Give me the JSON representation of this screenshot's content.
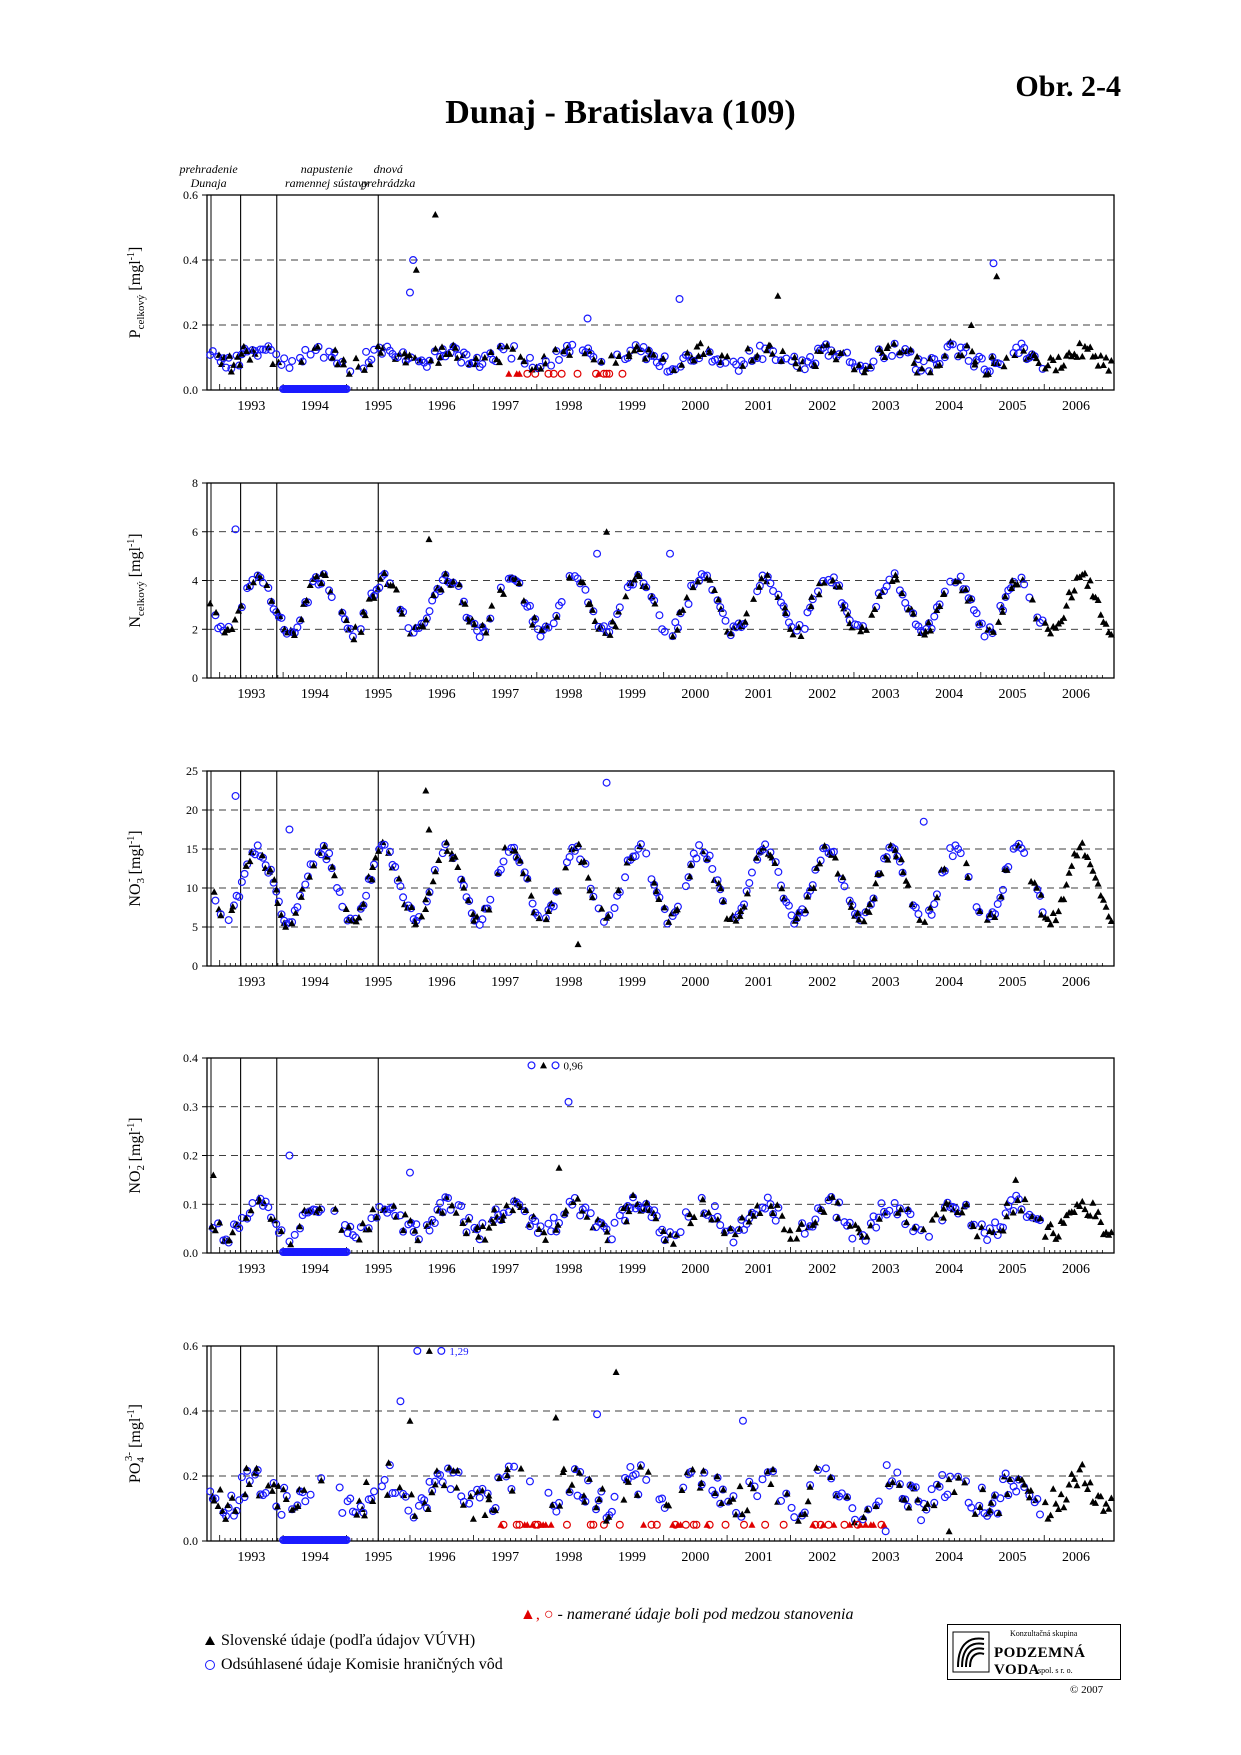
{
  "figure_label": "Obr. 2-4",
  "title": "Dunaj - Bratislava (109)",
  "events": [
    {
      "label_lines": [
        "prehradenie",
        "Dunaja"
      ],
      "x": 1992.83
    },
    {
      "label_lines": [
        "napustenie",
        "ramennej sústavy"
      ],
      "x": 1993.4
    },
    {
      "label_lines": [
        "dnová",
        "prehrádzka"
      ],
      "x": 1995.0
    }
  ],
  "x_ticks": [
    "1993",
    "1994",
    "1995",
    "1996",
    "1997",
    "1998",
    "1999",
    "2000",
    "2001",
    "2002",
    "2003",
    "2004",
    "2005",
    "2006"
  ],
  "colors": {
    "slovak": "#000000",
    "commission": "#1a1aff",
    "below_limit": "#e00000",
    "zero_band": "#1a1aff"
  },
  "legend": {
    "slovak": "Slovenské údaje (podľa údajov VÚVH)",
    "commission": "Odsúhlasené údaje Komisie hraničných vôd",
    "below_limit_symbols": "▲, ○",
    "below_limit_text": " - namerané údaje boli pod medzou stanovenia"
  },
  "logo": {
    "top": "Konzultačná skupina",
    "name": "PODZEMNÁ VODA",
    "bottom": "spol. s r. o."
  },
  "copyright": "© 2007",
  "chart_data": [
    {
      "type": "scatter",
      "name": "P_celkovy",
      "ylabel_main": "P",
      "ylabel_sub": "celkový",
      "ylabel_unit": "[mgl",
      "ylabel_exp": "-1",
      "xlim": [
        1992.3,
        2006.6
      ],
      "ylim": [
        0,
        0.6
      ],
      "yticks": [
        0,
        0.2,
        0.4,
        0.6
      ],
      "ytick_labels": [
        "0.0",
        "0.2",
        "0.4",
        "0.6"
      ],
      "dashed_lines": [
        0.2,
        0.4
      ],
      "baseline": 0.1,
      "amplitude": 0.02,
      "noise": 0.025,
      "zero_band": [
        1993.5,
        1994.5
      ],
      "outliers": [
        [
          1995.55,
          0.4
        ],
        [
          1995.6,
          0.37
        ],
        [
          1995.5,
          0.3
        ],
        [
          1995.9,
          0.54
        ],
        [
          1999.75,
          0.28
        ],
        [
          2001.3,
          0.29
        ],
        [
          2004.7,
          0.39
        ],
        [
          2004.75,
          0.35
        ],
        [
          1998.3,
          0.22
        ],
        [
          2004.35,
          0.2
        ]
      ],
      "red_range": [
        1996.9,
        1998.9,
        0.05
      ],
      "annotation": null
    },
    {
      "type": "scatter",
      "name": "N_celkovy",
      "ylabel_main": "N",
      "ylabel_sub": "celkový",
      "ylabel_unit": "[mgl",
      "ylabel_exp": "-1",
      "xlim": [
        1992.3,
        2006.6
      ],
      "ylim": [
        0,
        8
      ],
      "yticks": [
        0,
        2,
        4,
        6,
        8
      ],
      "ytick_labels": [
        "0",
        "2",
        "4",
        "6",
        "8"
      ],
      "dashed_lines": [
        2,
        4,
        6
      ],
      "baseline": 3.0,
      "amplitude": 1.1,
      "noise": 0.25,
      "zero_band": null,
      "outliers": [
        [
          1992.75,
          6.1
        ],
        [
          1995.8,
          5.7
        ],
        [
          1998.45,
          5.1
        ],
        [
          1998.6,
          6.0
        ],
        [
          1999.6,
          5.1
        ]
      ],
      "red_range": null,
      "annotation": null
    },
    {
      "type": "scatter",
      "name": "NO3",
      "ylabel_main": "NO",
      "ylabel_sub": "3",
      "ylabel_sup": "-",
      "ylabel_unit": "[mgl",
      "ylabel_exp": "-1",
      "xlim": [
        1992.3,
        2006.6
      ],
      "ylim": [
        0,
        25
      ],
      "yticks": [
        0,
        5,
        10,
        15,
        20,
        25
      ],
      "ytick_labels": [
        "0",
        "5",
        "10",
        "15",
        "20",
        "25"
      ],
      "dashed_lines": [
        5,
        10,
        15,
        20
      ],
      "baseline": 10.5,
      "amplitude": 4.5,
      "noise": 0.8,
      "zero_band": null,
      "outliers": [
        [
          1992.75,
          21.8
        ],
        [
          1995.75,
          22.5
        ],
        [
          1998.6,
          23.5
        ],
        [
          1998.15,
          2.8
        ],
        [
          1993.6,
          17.5
        ],
        [
          1995.8,
          17.5
        ],
        [
          2003.6,
          18.5
        ]
      ],
      "red_range": null,
      "annotation": null
    },
    {
      "type": "scatter",
      "name": "NO2",
      "ylabel_main": "NO",
      "ylabel_sub": "2",
      "ylabel_sup": "-",
      "ylabel_unit": "[mgl",
      "ylabel_exp": "-1",
      "xlim": [
        1992.3,
        2006.6
      ],
      "ylim": [
        0,
        0.4
      ],
      "yticks": [
        0,
        0.1,
        0.2,
        0.3,
        0.4
      ],
      "ytick_labels": [
        "0.0",
        "0.1",
        "0.2",
        "0.3",
        "0.4"
      ],
      "dashed_lines": [
        0.1,
        0.2,
        0.3
      ],
      "baseline": 0.07,
      "amplitude": 0.03,
      "noise": 0.02,
      "zero_band": [
        1993.5,
        1994.5
      ],
      "outliers": [
        [
          1998.0,
          0.31
        ],
        [
          1997.85,
          0.175
        ],
        [
          1993.6,
          0.2
        ],
        [
          2005.05,
          0.15
        ],
        [
          1995.5,
          0.165
        ],
        [
          1992.4,
          0.16
        ]
      ],
      "red_range": null,
      "annotation": {
        "x": 1997.7,
        "y": 0.385,
        "text": "0,96"
      }
    },
    {
      "type": "scatter",
      "name": "PO4",
      "ylabel_main": "PO",
      "ylabel_sub": "4",
      "ylabel_sup": "3-",
      "ylabel_unit": "[mgl",
      "ylabel_exp": "-1",
      "xlim": [
        1992.3,
        2006.6
      ],
      "ylim": [
        0,
        0.6
      ],
      "yticks": [
        0,
        0.2,
        0.4,
        0.6
      ],
      "ytick_labels": [
        "0.0",
        "0.2",
        "0.4",
        "0.6"
      ],
      "dashed_lines": [
        0.2,
        0.4
      ],
      "baseline": 0.15,
      "amplitude": 0.04,
      "noise": 0.05,
      "zero_band": [
        1993.5,
        1994.5
      ],
      "outliers": [
        [
          1995.35,
          0.43
        ],
        [
          1995.5,
          0.37
        ],
        [
          1998.45,
          0.39
        ],
        [
          1998.75,
          0.52
        ],
        [
          2000.75,
          0.37
        ],
        [
          1997.8,
          0.38
        ],
        [
          2003.0,
          0.03
        ],
        [
          2004.0,
          0.03
        ]
      ],
      "red_range": [
        1996.9,
        2003.0,
        0.05
      ],
      "annotation": {
        "x": 1995.9,
        "y": 0.585,
        "text": "1,29"
      }
    }
  ]
}
